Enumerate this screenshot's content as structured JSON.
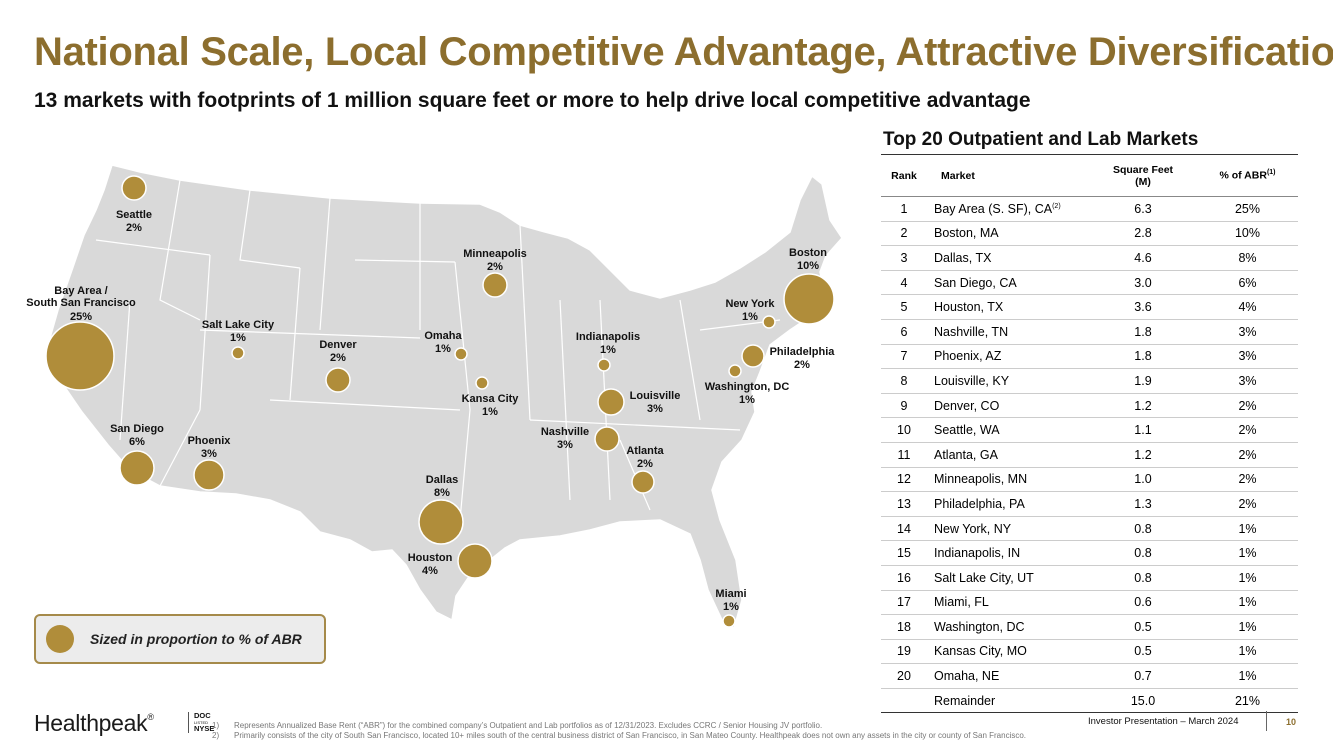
{
  "title": "National Scale, Local Competitive Advantage, Attractive Diversification",
  "subtitle": "13 markets with footprints of 1 million square feet or more to help drive local competitive advantage",
  "map": {
    "cities": [
      {
        "name": "Seattle",
        "pct": "2%"
      },
      {
        "name": "Bay Area /",
        "name2": "South San Francisco",
        "pct": "25%"
      },
      {
        "name": "Salt Lake City",
        "pct": "1%"
      },
      {
        "name": "San Diego",
        "pct": "6%"
      },
      {
        "name": "Phoenix",
        "pct": "3%"
      },
      {
        "name": "Denver",
        "pct": "2%"
      },
      {
        "name": "Minneapolis",
        "pct": "2%"
      },
      {
        "name": "Omaha",
        "pct": "1%"
      },
      {
        "name": "Kansa City",
        "pct": "1%"
      },
      {
        "name": "Dallas",
        "pct": "8%"
      },
      {
        "name": "Houston",
        "pct": "4%"
      },
      {
        "name": "Indianapolis",
        "pct": "1%"
      },
      {
        "name": "Louisville",
        "pct": "3%"
      },
      {
        "name": "Nashville",
        "pct": "3%"
      },
      {
        "name": "Atlanta",
        "pct": "2%"
      },
      {
        "name": "Miami",
        "pct": "1%"
      },
      {
        "name": "Boston",
        "pct": "10%"
      },
      {
        "name": "New York",
        "pct": "1%"
      },
      {
        "name": "Philadelphia",
        "pct": "2%"
      },
      {
        "name": "Washington, DC",
        "pct": "1%"
      }
    ],
    "legend": "Sized in proportion to % of ABR",
    "bubble_color": "#B08D3A",
    "map_color": "#D9D9D9"
  },
  "table": {
    "title": "Top 20 Outpatient and Lab Markets",
    "headers": {
      "rank": "Rank",
      "market": "Market",
      "sqft": "Square Feet",
      "sqft2": "(M)",
      "abr": "% of ABR",
      "abr_sup": "(1)"
    },
    "rows": [
      {
        "rank": "1",
        "market": "Bay Area (S. SF), CA",
        "sup": "(2)",
        "sqft": "6.3",
        "abr": "25%"
      },
      {
        "rank": "2",
        "market": "Boston, MA",
        "sqft": "2.8",
        "abr": "10%"
      },
      {
        "rank": "3",
        "market": "Dallas, TX",
        "sqft": "4.6",
        "abr": "8%"
      },
      {
        "rank": "4",
        "market": "San Diego, CA",
        "sqft": "3.0",
        "abr": "6%"
      },
      {
        "rank": "5",
        "market": "Houston, TX",
        "sqft": "3.6",
        "abr": "4%"
      },
      {
        "rank": "6",
        "market": "Nashville, TN",
        "sqft": "1.8",
        "abr": "3%"
      },
      {
        "rank": "7",
        "market": "Phoenix, AZ",
        "sqft": "1.8",
        "abr": "3%"
      },
      {
        "rank": "8",
        "market": "Louisville, KY",
        "sqft": "1.9",
        "abr": "3%"
      },
      {
        "rank": "9",
        "market": "Denver, CO",
        "sqft": "1.2",
        "abr": "2%"
      },
      {
        "rank": "10",
        "market": "Seattle, WA",
        "sqft": "1.1",
        "abr": "2%"
      },
      {
        "rank": "11",
        "market": "Atlanta, GA",
        "sqft": "1.2",
        "abr": "2%"
      },
      {
        "rank": "12",
        "market": "Minneapolis, MN",
        "sqft": "1.0",
        "abr": "2%"
      },
      {
        "rank": "13",
        "market": "Philadelphia, PA",
        "sqft": "1.3",
        "abr": "2%"
      },
      {
        "rank": "14",
        "market": "New York, NY",
        "sqft": "0.8",
        "abr": "1%"
      },
      {
        "rank": "15",
        "market": "Indianapolis, IN",
        "sqft": "0.8",
        "abr": "1%"
      },
      {
        "rank": "16",
        "market": "Salt Lake City, UT",
        "sqft": "0.8",
        "abr": "1%"
      },
      {
        "rank": "17",
        "market": "Miami, FL",
        "sqft": "0.6",
        "abr": "1%"
      },
      {
        "rank": "18",
        "market": "Washington, DC",
        "sqft": "0.5",
        "abr": "1%"
      },
      {
        "rank": "19",
        "market": "Kansas City, MO",
        "sqft": "0.5",
        "abr": "1%"
      },
      {
        "rank": "20",
        "market": "Omaha, NE",
        "sqft": "0.7",
        "abr": "1%"
      },
      {
        "rank": "",
        "market": "Remainder",
        "sqft": "15.0",
        "abr": "21%"
      }
    ]
  },
  "footer": {
    "logo": "Healthpeak",
    "logo_mark": "®",
    "ticker1": "DOC",
    "ticker2": "LISTED",
    "ticker3": "NYSE",
    "footnotes": [
      {
        "num": "1)",
        "text": "Represents Annualized Base Rent (“ABR”) for the combined company’s Outpatient and Lab portfolios as of 12/31/2023. Excludes CCRC / Senior Housing JV portfolio."
      },
      {
        "num": "2)",
        "text": "Primarily consists of the city of South San Francisco, located 10+ miles south of the central business district of San Francisco, in San Mateo County. Healthpeak does not own any assets in the city or county of San Francisco."
      }
    ],
    "presentation": "Investor Presentation – March 2024",
    "page": "10"
  },
  "colors": {
    "accent": "#8C6E2E"
  }
}
